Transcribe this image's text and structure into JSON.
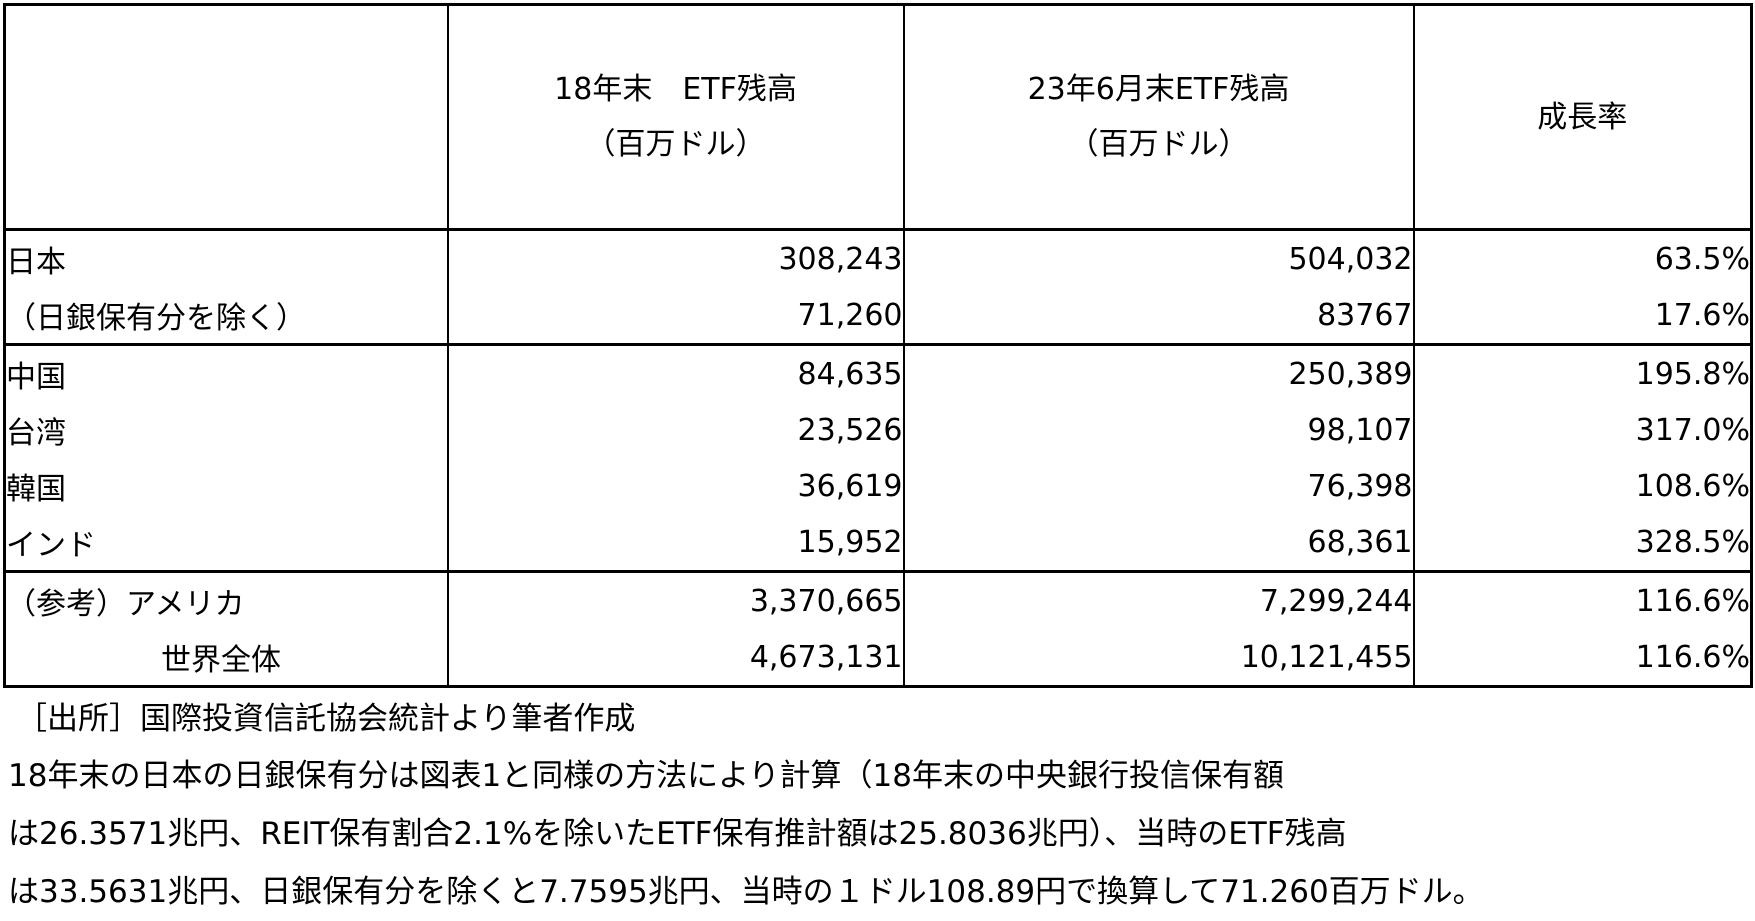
{
  "table": {
    "headers": [
      {
        "line1": "",
        "line2": ""
      },
      {
        "line1": "18年末　ETF残高",
        "line2": "（百万ドル）"
      },
      {
        "line1": "23年6月末ETF残高",
        "line2": "（百万ドル）"
      },
      {
        "line1": "成長率",
        "line2": ""
      }
    ],
    "groups": [
      {
        "rows": [
          {
            "label": "日本",
            "indent": 0,
            "etf_2018": "308,243",
            "etf_2023_jun": "504,032",
            "growth": "63.5%"
          },
          {
            "label": "（日銀保有分を除く）",
            "indent": 0,
            "etf_2018": "71,260",
            "etf_2023_jun": "83767",
            "growth": "17.6%"
          }
        ]
      },
      {
        "rows": [
          {
            "label": "中国",
            "indent": 0,
            "etf_2018": "84,635",
            "etf_2023_jun": "250,389",
            "growth": "195.8%"
          },
          {
            "label": "台湾",
            "indent": 0,
            "etf_2018": "23,526",
            "etf_2023_jun": "98,107",
            "growth": "317.0%"
          },
          {
            "label": "韓国",
            "indent": 0,
            "etf_2018": "36,619",
            "etf_2023_jun": "76,398",
            "growth": "108.6%"
          },
          {
            "label": "インド",
            "indent": 0,
            "etf_2018": "15,952",
            "etf_2023_jun": "68,361",
            "growth": "328.5%"
          }
        ]
      },
      {
        "rows": [
          {
            "label": "（参考）アメリカ",
            "indent": 0,
            "etf_2018": "3,370,665",
            "etf_2023_jun": "7,299,244",
            "growth": "116.6%"
          },
          {
            "label": "世界全体",
            "indent": 1,
            "etf_2018": "4,673,131",
            "etf_2023_jun": "10,121,455",
            "growth": "116.6%"
          }
        ]
      }
    ]
  },
  "notes": [
    "［出所］国際投資信託協会統計より筆者作成",
    "18年末の日本の日銀保有分は図表1と同様の方法により計算（18年末の中央銀行投信保有額",
    "は26.3571兆円、REIT保有割合2.1%を除いたETF保有推計額は25.8036兆円）、当時のETF残高",
    "は33.5631兆円、日銀保有分を除くと7.7595兆円、当時の１ドル108.89円で換算して71.260百万ドル。"
  ]
}
